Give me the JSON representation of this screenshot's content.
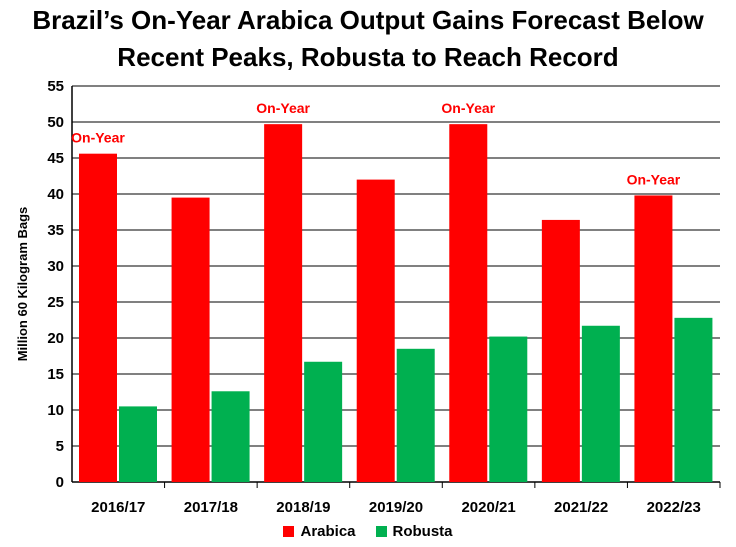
{
  "chart_data": {
    "type": "bar",
    "title": "Brazil’s On-Year Arabica Output Gains Forecast Below Recent Peaks, Robusta to Reach Record",
    "title_lines": [
      "Brazil’s On-Year Arabica Output Gains Forecast Below",
      "Recent Peaks, Robusta to Reach Record"
    ],
    "xlabel": "",
    "ylabel": "Million 60 Kilogram Bags",
    "ylim": [
      0,
      55
    ],
    "yticks": [
      0,
      5,
      10,
      15,
      20,
      25,
      30,
      35,
      40,
      45,
      50,
      55
    ],
    "grid": true,
    "legend_position": "bottom",
    "categories": [
      "2016/17",
      "2017/18",
      "2018/19",
      "2019/20",
      "2020/21",
      "2021/22",
      "2022/23"
    ],
    "series": [
      {
        "name": "Arabica",
        "color": "#ff0000",
        "values": [
          45.6,
          39.5,
          49.7,
          42.0,
          49.7,
          36.4,
          39.8
        ]
      },
      {
        "name": "Robusta",
        "color": "#00b050",
        "values": [
          10.5,
          12.6,
          16.7,
          18.5,
          20.2,
          21.7,
          22.8
        ]
      }
    ],
    "annotations": [
      {
        "text": "On-Year",
        "category": "2016/17"
      },
      {
        "text": "On-Year",
        "category": "2018/19"
      },
      {
        "text": "On-Year",
        "category": "2020/21"
      },
      {
        "text": "On-Year",
        "category": "2022/23"
      }
    ]
  }
}
